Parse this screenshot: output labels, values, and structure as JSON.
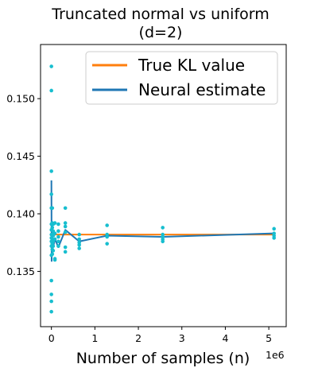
{
  "chart_data": {
    "type": "line",
    "title_line1": "Truncated normal vs uniform",
    "title_line2": "(d=2)",
    "xlabel": "Number of samples (n)",
    "x_offset_label": "1e6",
    "ylabel": "",
    "xlim": [
      -0.25,
      5.4
    ],
    "ylim": [
      0.1302,
      0.1547
    ],
    "x_ticks": [
      0,
      1,
      2,
      3,
      4,
      5
    ],
    "x_tick_labels": [
      "0",
      "1",
      "2",
      "3",
      "4",
      "5"
    ],
    "y_ticks": [
      0.135,
      0.14,
      0.145,
      0.15
    ],
    "y_tick_labels": [
      "0.135",
      "0.140",
      "0.145",
      "0.150"
    ],
    "legend_position": "top-right",
    "colors": {
      "true_kl": "#ff7f0e",
      "neural": "#1f77b4",
      "points": "#17becf"
    },
    "series": [
      {
        "name": "True KL value",
        "x": [
          0.0,
          5.12
        ],
        "y": [
          0.1382,
          0.1382
        ]
      },
      {
        "name": "Neural estimate",
        "x": [
          0.0,
          0.005,
          0.01,
          0.02,
          0.04,
          0.08,
          0.16,
          0.32,
          0.64,
          1.28,
          2.56,
          5.12
        ],
        "y": [
          0.1429,
          0.1359,
          0.1392,
          0.1378,
          0.1371,
          0.1378,
          0.1371,
          0.1386,
          0.1376,
          0.1381,
          0.138,
          0.1383
        ]
      }
    ],
    "scatter": {
      "x": [
        0.0,
        0.0,
        0.0,
        0.0,
        0.0,
        0.0,
        0.0,
        0.0,
        0.0,
        0.0,
        0.0,
        0.0,
        0.0,
        0.0,
        0.0,
        0.0,
        0.02,
        0.02,
        0.02,
        0.02,
        0.02,
        0.02,
        0.02,
        0.02,
        0.04,
        0.04,
        0.04,
        0.04,
        0.04,
        0.04,
        0.08,
        0.08,
        0.08,
        0.08,
        0.08,
        0.16,
        0.16,
        0.16,
        0.16,
        0.16,
        0.32,
        0.32,
        0.32,
        0.32,
        0.32,
        0.32,
        0.64,
        0.64,
        0.64,
        0.64,
        0.64,
        1.28,
        1.28,
        1.28,
        1.28,
        2.56,
        2.56,
        2.56,
        2.56,
        2.56,
        5.12,
        5.12,
        5.12,
        5.12
      ],
      "y": [
        0.1528,
        0.1507,
        0.1437,
        0.1417,
        0.1405,
        0.1391,
        0.1386,
        0.1382,
        0.1379,
        0.1376,
        0.1372,
        0.1364,
        0.1342,
        0.133,
        0.1324,
        0.1315,
        0.1405,
        0.1392,
        0.1388,
        0.1382,
        0.1378,
        0.1374,
        0.1369,
        0.1365,
        0.1391,
        0.1385,
        0.1381,
        0.1376,
        0.1372,
        0.1368,
        0.1392,
        0.1383,
        0.1378,
        0.1361,
        0.136,
        0.1391,
        0.1385,
        0.138,
        0.1376,
        0.1372,
        0.1405,
        0.1392,
        0.1389,
        0.1384,
        0.1371,
        0.1367,
        0.1382,
        0.1378,
        0.1375,
        0.1373,
        0.137,
        0.139,
        0.1382,
        0.138,
        0.1374,
        0.1388,
        0.1382,
        0.138,
        0.1378,
        0.1376,
        0.1387,
        0.1383,
        0.1381,
        0.1379
      ]
    }
  }
}
